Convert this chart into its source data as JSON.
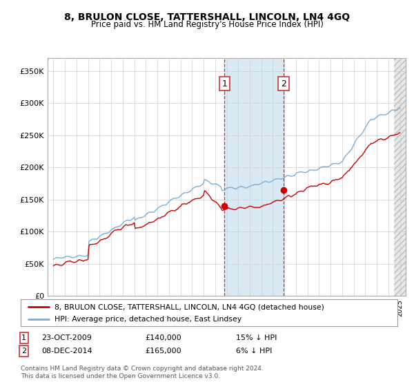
{
  "title": "8, BRULON CLOSE, TATTERSHALL, LINCOLN, LN4 4GQ",
  "subtitle": "Price paid vs. HM Land Registry's House Price Index (HPI)",
  "property_color": "#cc0000",
  "hpi_color": "#7aaed6",
  "background_color": "#ffffff",
  "grid_color": "#cccccc",
  "shaded_region_color": "#daeaf5",
  "purchase1_date": 2009.81,
  "purchase2_date": 2014.92,
  "purchase1_price": 140000,
  "purchase2_price": 165000,
  "legend1": "8, BRULON CLOSE, TATTERSHALL, LINCOLN, LN4 4GQ (detached house)",
  "legend2": "HPI: Average price, detached house, East Lindsey",
  "footer": "Contains HM Land Registry data © Crown copyright and database right 2024.\nThis data is licensed under the Open Government Licence v3.0.",
  "ylim": [
    0,
    370000
  ],
  "yticks": [
    0,
    50000,
    100000,
    150000,
    200000,
    250000,
    300000,
    350000
  ],
  "xlim_start": 1994.5,
  "xlim_end": 2025.5
}
